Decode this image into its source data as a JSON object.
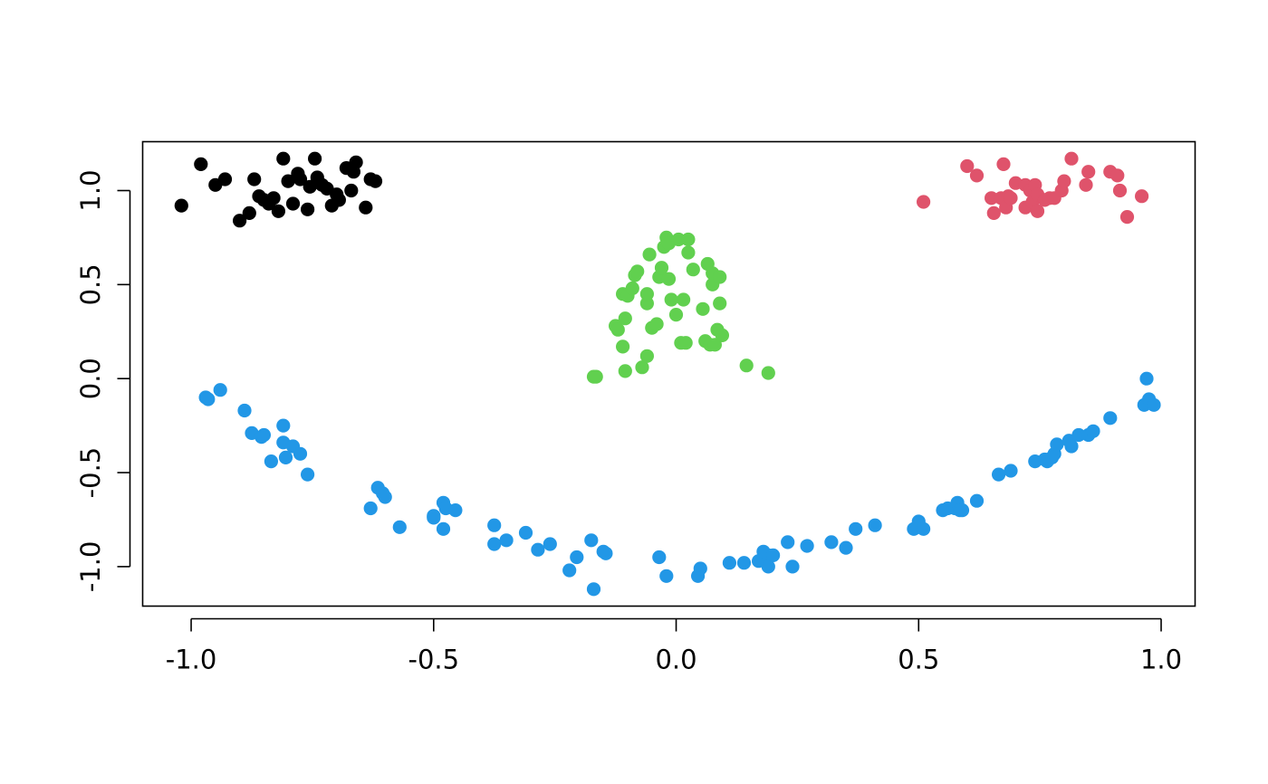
{
  "colors": {
    "cluster_black": "#000000",
    "cluster_red": "#DF536B",
    "cluster_green": "#61D04F",
    "cluster_blue": "#2297E6"
  },
  "chart_data": {
    "type": "scatter",
    "title": "",
    "xlabel": "",
    "ylabel": "",
    "xlim": [
      -1.1,
      1.07
    ],
    "ylim": [
      -1.21,
      1.26
    ],
    "x_ticks": [
      -1.0,
      -0.5,
      0.0,
      0.5,
      1.0
    ],
    "x_tick_labels": [
      "-1.0",
      "-0.5",
      "0.0",
      "0.5",
      "1.0"
    ],
    "y_ticks": [
      -1.0,
      -0.5,
      0.0,
      0.5,
      1.0
    ],
    "y_tick_labels": [
      "-1.0",
      "-0.5",
      "0.0",
      "0.5",
      "1.0"
    ],
    "grid": false,
    "legend": "none",
    "series": [
      {
        "color": "#000000",
        "points": [
          [
            -1.02,
            0.92
          ],
          [
            -0.98,
            1.14
          ],
          [
            -0.95,
            1.03
          ],
          [
            -0.93,
            1.06
          ],
          [
            -0.9,
            0.84
          ],
          [
            -0.88,
            0.88
          ],
          [
            -0.87,
            1.06
          ],
          [
            -0.86,
            0.97
          ],
          [
            -0.85,
            0.95
          ],
          [
            -0.84,
            0.93
          ],
          [
            -0.83,
            0.96
          ],
          [
            -0.82,
            0.89
          ],
          [
            -0.81,
            1.17
          ],
          [
            -0.8,
            1.05
          ],
          [
            -0.79,
            0.93
          ],
          [
            -0.78,
            1.09
          ],
          [
            -0.775,
            1.06
          ],
          [
            -0.76,
            0.9
          ],
          [
            -0.755,
            1.02
          ],
          [
            -0.745,
            1.17
          ],
          [
            -0.74,
            1.07
          ],
          [
            -0.73,
            1.03
          ],
          [
            -0.72,
            1.01
          ],
          [
            -0.71,
            0.92
          ],
          [
            -0.7,
            0.98
          ],
          [
            -0.695,
            0.95
          ],
          [
            -0.68,
            1.12
          ],
          [
            -0.67,
            1.0
          ],
          [
            -0.665,
            1.1
          ],
          [
            -0.66,
            1.15
          ],
          [
            -0.64,
            0.91
          ],
          [
            -0.63,
            1.06
          ],
          [
            -0.62,
            1.05
          ]
        ]
      },
      {
        "color": "#DF536B",
        "points": [
          [
            0.51,
            0.94
          ],
          [
            0.6,
            1.13
          ],
          [
            0.62,
            1.08
          ],
          [
            0.65,
            0.96
          ],
          [
            0.655,
            0.88
          ],
          [
            0.67,
            0.96
          ],
          [
            0.675,
            1.14
          ],
          [
            0.68,
            0.91
          ],
          [
            0.685,
            0.97
          ],
          [
            0.69,
            0.96
          ],
          [
            0.7,
            1.04
          ],
          [
            0.72,
            1.03
          ],
          [
            0.72,
            0.91
          ],
          [
            0.73,
            1.0
          ],
          [
            0.735,
            0.94
          ],
          [
            0.74,
            1.03
          ],
          [
            0.745,
            0.98
          ],
          [
            0.745,
            0.89
          ],
          [
            0.76,
            0.95
          ],
          [
            0.77,
            0.96
          ],
          [
            0.78,
            0.96
          ],
          [
            0.795,
            1.0
          ],
          [
            0.8,
            1.05
          ],
          [
            0.815,
            1.17
          ],
          [
            0.845,
            1.03
          ],
          [
            0.85,
            1.1
          ],
          [
            0.895,
            1.1
          ],
          [
            0.91,
            1.08
          ],
          [
            0.915,
            1.0
          ],
          [
            0.93,
            0.86
          ],
          [
            0.96,
            0.97
          ]
        ]
      },
      {
        "color": "#61D04F",
        "points": [
          [
            -0.17,
            0.01
          ],
          [
            -0.165,
            0.01
          ],
          [
            -0.125,
            0.28
          ],
          [
            -0.12,
            0.26
          ],
          [
            -0.11,
            0.17
          ],
          [
            -0.11,
            0.45
          ],
          [
            -0.105,
            0.04
          ],
          [
            -0.105,
            0.32
          ],
          [
            -0.1,
            0.44
          ],
          [
            -0.09,
            0.48
          ],
          [
            -0.085,
            0.55
          ],
          [
            -0.08,
            0.57
          ],
          [
            -0.07,
            0.06
          ],
          [
            -0.06,
            0.12
          ],
          [
            -0.06,
            0.4
          ],
          [
            -0.06,
            0.45
          ],
          [
            -0.055,
            0.66
          ],
          [
            -0.05,
            0.27
          ],
          [
            -0.04,
            0.29
          ],
          [
            -0.035,
            0.54
          ],
          [
            -0.03,
            0.59
          ],
          [
            -0.025,
            0.7
          ],
          [
            -0.02,
            0.75
          ],
          [
            -0.015,
            0.72
          ],
          [
            -0.015,
            0.53
          ],
          [
            -0.01,
            0.42
          ],
          [
            0.0,
            0.34
          ],
          [
            0.005,
            0.74
          ],
          [
            0.01,
            0.19
          ],
          [
            0.015,
            0.42
          ],
          [
            0.02,
            0.19
          ],
          [
            0.025,
            0.74
          ],
          [
            0.025,
            0.67
          ],
          [
            0.035,
            0.58
          ],
          [
            0.055,
            0.37
          ],
          [
            0.06,
            0.2
          ],
          [
            0.065,
            0.61
          ],
          [
            0.07,
            0.18
          ],
          [
            0.075,
            0.56
          ],
          [
            0.075,
            0.5
          ],
          [
            0.08,
            0.18
          ],
          [
            0.085,
            0.26
          ],
          [
            0.09,
            0.4
          ],
          [
            0.09,
            0.54
          ],
          [
            0.095,
            0.23
          ],
          [
            0.145,
            0.07
          ],
          [
            0.19,
            0.03
          ]
        ]
      },
      {
        "color": "#2297E6",
        "points": [
          [
            -0.97,
            -0.1
          ],
          [
            -0.965,
            -0.11
          ],
          [
            -0.94,
            -0.06
          ],
          [
            -0.89,
            -0.17
          ],
          [
            -0.875,
            -0.29
          ],
          [
            -0.855,
            -0.31
          ],
          [
            -0.85,
            -0.3
          ],
          [
            -0.835,
            -0.44
          ],
          [
            -0.81,
            -0.25
          ],
          [
            -0.81,
            -0.34
          ],
          [
            -0.805,
            -0.42
          ],
          [
            -0.79,
            -0.36
          ],
          [
            -0.775,
            -0.4
          ],
          [
            -0.76,
            -0.51
          ],
          [
            -0.63,
            -0.69
          ],
          [
            -0.615,
            -0.58
          ],
          [
            -0.605,
            -0.61
          ],
          [
            -0.6,
            -0.63
          ],
          [
            -0.57,
            -0.79
          ],
          [
            -0.5,
            -0.73
          ],
          [
            -0.5,
            -0.74
          ],
          [
            -0.48,
            -0.66
          ],
          [
            -0.48,
            -0.8
          ],
          [
            -0.475,
            -0.69
          ],
          [
            -0.455,
            -0.7
          ],
          [
            -0.375,
            -0.78
          ],
          [
            -0.375,
            -0.88
          ],
          [
            -0.35,
            -0.86
          ],
          [
            -0.31,
            -0.82
          ],
          [
            -0.285,
            -0.91
          ],
          [
            -0.26,
            -0.88
          ],
          [
            -0.22,
            -1.02
          ],
          [
            -0.205,
            -0.95
          ],
          [
            -0.175,
            -0.86
          ],
          [
            -0.17,
            -1.12
          ],
          [
            -0.15,
            -0.92
          ],
          [
            -0.145,
            -0.93
          ],
          [
            -0.035,
            -0.95
          ],
          [
            -0.02,
            -1.05
          ],
          [
            0.045,
            -1.05
          ],
          [
            0.05,
            -1.01
          ],
          [
            0.11,
            -0.98
          ],
          [
            0.14,
            -0.98
          ],
          [
            0.17,
            -0.97
          ],
          [
            0.18,
            -0.92
          ],
          [
            0.19,
            -0.94
          ],
          [
            0.19,
            -1.0
          ],
          [
            0.2,
            -0.94
          ],
          [
            0.23,
            -0.87
          ],
          [
            0.24,
            -1.0
          ],
          [
            0.27,
            -0.89
          ],
          [
            0.32,
            -0.87
          ],
          [
            0.35,
            -0.9
          ],
          [
            0.37,
            -0.8
          ],
          [
            0.41,
            -0.78
          ],
          [
            0.49,
            -0.8
          ],
          [
            0.5,
            -0.76
          ],
          [
            0.51,
            -0.8
          ],
          [
            0.55,
            -0.7
          ],
          [
            0.56,
            -0.69
          ],
          [
            0.575,
            -0.69
          ],
          [
            0.58,
            -0.66
          ],
          [
            0.585,
            -0.7
          ],
          [
            0.59,
            -0.7
          ],
          [
            0.62,
            -0.65
          ],
          [
            0.665,
            -0.51
          ],
          [
            0.69,
            -0.49
          ],
          [
            0.74,
            -0.44
          ],
          [
            0.76,
            -0.43
          ],
          [
            0.765,
            -0.44
          ],
          [
            0.775,
            -0.42
          ],
          [
            0.78,
            -0.4
          ],
          [
            0.785,
            -0.35
          ],
          [
            0.81,
            -0.33
          ],
          [
            0.815,
            -0.36
          ],
          [
            0.83,
            -0.3
          ],
          [
            0.85,
            -0.3
          ],
          [
            0.86,
            -0.28
          ],
          [
            0.895,
            -0.21
          ],
          [
            0.965,
            -0.14
          ],
          [
            0.97,
            0.0
          ],
          [
            0.975,
            -0.11
          ],
          [
            0.985,
            -0.14
          ]
        ]
      }
    ]
  }
}
